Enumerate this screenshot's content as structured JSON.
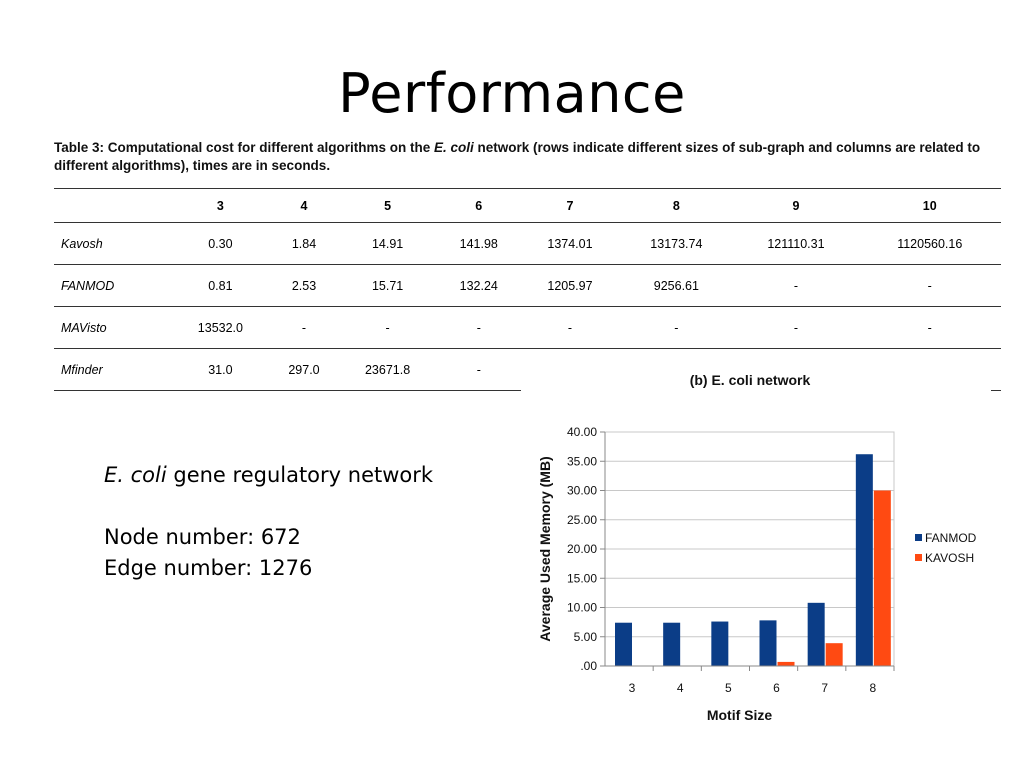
{
  "slide": {
    "title": "Performance"
  },
  "table": {
    "caption_prefix": "Table 3: Computational cost for different algorithms on the ",
    "caption_italic": "E. coli",
    "caption_suffix": " network (rows indicate different sizes of sub-graph and columns are related to different algorithms), times are in seconds.",
    "headers": [
      "",
      "3",
      "4",
      "5",
      "6",
      "7",
      "8",
      "9",
      "10"
    ],
    "rows": [
      {
        "label": "Kavosh",
        "values": [
          "0.30",
          "1.84",
          "14.91",
          "141.98",
          "1374.01",
          "13173.74",
          "121110.31",
          "1120560.16"
        ]
      },
      {
        "label": "FANMOD",
        "values": [
          "0.81",
          "2.53",
          "15.71",
          "132.24",
          "1205.97",
          "9256.61",
          "-",
          "-"
        ]
      },
      {
        "label": "MAVisto",
        "values": [
          "13532.0",
          "-",
          "-",
          "-",
          "-",
          "-",
          "-",
          "-"
        ]
      },
      {
        "label": "Mfinder",
        "values": [
          "31.0",
          "297.0",
          "23671.8",
          "-",
          "",
          "",
          "",
          ""
        ]
      }
    ]
  },
  "info": {
    "network_italic": "E. coli",
    "network_rest": " gene regulatory network",
    "node_number": "Node number: 672",
    "edge_number": "Edge number: 1276"
  },
  "chart_data": {
    "type": "bar",
    "title": "(b) E. coli network",
    "xlabel": "Motif Size",
    "ylabel": "Average Used Memory (MB)",
    "categories": [
      "3",
      "4",
      "5",
      "6",
      "7",
      "8"
    ],
    "ylim": [
      0,
      40
    ],
    "yticks": [
      0,
      5,
      10,
      15,
      20,
      25,
      30,
      35,
      40
    ],
    "ytick_labels": [
      ".00",
      "5.00",
      "10.00",
      "15.00",
      "20.00",
      "25.00",
      "30.00",
      "35.00",
      "40.00"
    ],
    "grid": true,
    "legend": "right",
    "series": [
      {
        "name": "FANMOD",
        "color": "#0b3d87",
        "values": [
          7.4,
          7.4,
          7.6,
          7.8,
          10.8,
          36.2
        ]
      },
      {
        "name": "KAVOSH",
        "color": "#ff4a12",
        "values": [
          0,
          0,
          0,
          0.7,
          3.9,
          30.0
        ]
      }
    ]
  }
}
